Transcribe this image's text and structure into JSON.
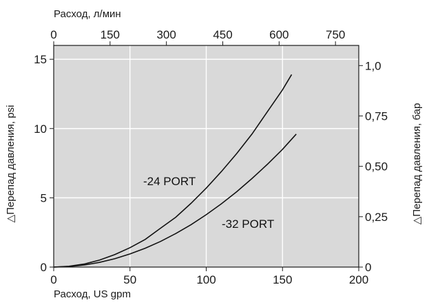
{
  "chart_data": {
    "type": "line",
    "x_top_label": "Расход, л/мин",
    "x_bottom_label": "Расход, US gpm",
    "y_left_label": "△Перепад давления, psi",
    "y_right_label": "△Перепад давления, бар",
    "x_bottom_ticks": [
      "0",
      "50",
      "100",
      "150",
      "200"
    ],
    "x_top_ticks": [
      "0",
      "150",
      "300",
      "450",
      "600",
      "750"
    ],
    "y_left_ticks": [
      "0",
      "5",
      "10",
      "15"
    ],
    "y_right_ticks": [
      "0",
      "0,25",
      "0,50",
      "0,75",
      "1,0"
    ],
    "xlim": [
      0,
      200
    ],
    "ylim": [
      0,
      16
    ],
    "grid": true,
    "background": "#d9d9d9",
    "grid_color": "#ffffff",
    "line_color": "#111111",
    "series": [
      {
        "name": "-24 PORT",
        "x": [
          0,
          10,
          20,
          30,
          40,
          50,
          60,
          70,
          80,
          90,
          100,
          110,
          120,
          130,
          140,
          150,
          156
        ],
        "y": [
          0,
          0.06,
          0.22,
          0.5,
          0.9,
          1.4,
          2.0,
          2.8,
          3.6,
          4.6,
          5.7,
          6.9,
          8.2,
          9.6,
          11.2,
          12.8,
          13.9
        ]
      },
      {
        "name": "-32 PORT",
        "x": [
          0,
          10,
          20,
          30,
          40,
          50,
          60,
          70,
          80,
          90,
          100,
          110,
          120,
          130,
          140,
          150,
          159
        ],
        "y": [
          0,
          0.04,
          0.15,
          0.34,
          0.6,
          0.95,
          1.36,
          1.85,
          2.42,
          3.06,
          3.78,
          4.57,
          5.44,
          6.39,
          7.41,
          8.5,
          9.6
        ]
      }
    ]
  }
}
